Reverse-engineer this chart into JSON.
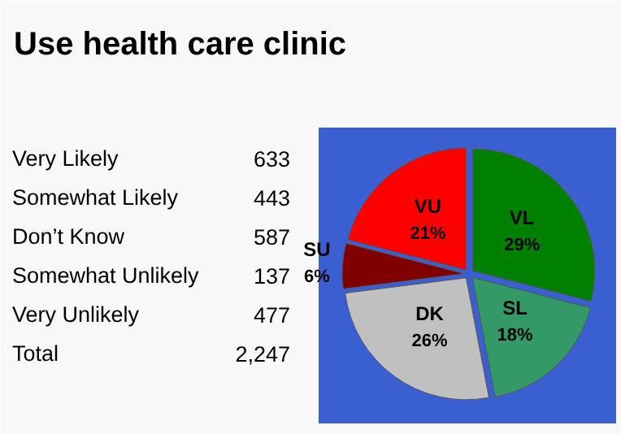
{
  "chart_data": {
    "type": "pie",
    "title": "Use health care clinic",
    "categories": [
      "VL",
      "SL",
      "DK",
      "SU",
      "VU"
    ],
    "values": [
      29,
      18,
      26,
      6,
      21
    ],
    "value_labels": [
      "29%",
      "18%",
      "26%",
      "6%",
      "21%"
    ],
    "colors": [
      "#008000",
      "#339966",
      "#c0c0c0",
      "#800000",
      "#ff0000"
    ],
    "annotations": [
      "Very Likely",
      "633",
      "Somewhat Likely",
      "443",
      "Don’t Know",
      "587",
      "Somewhat Unlikely",
      "137",
      "Very Unlikely",
      "477",
      "Total",
      "2,247"
    ]
  }
}
